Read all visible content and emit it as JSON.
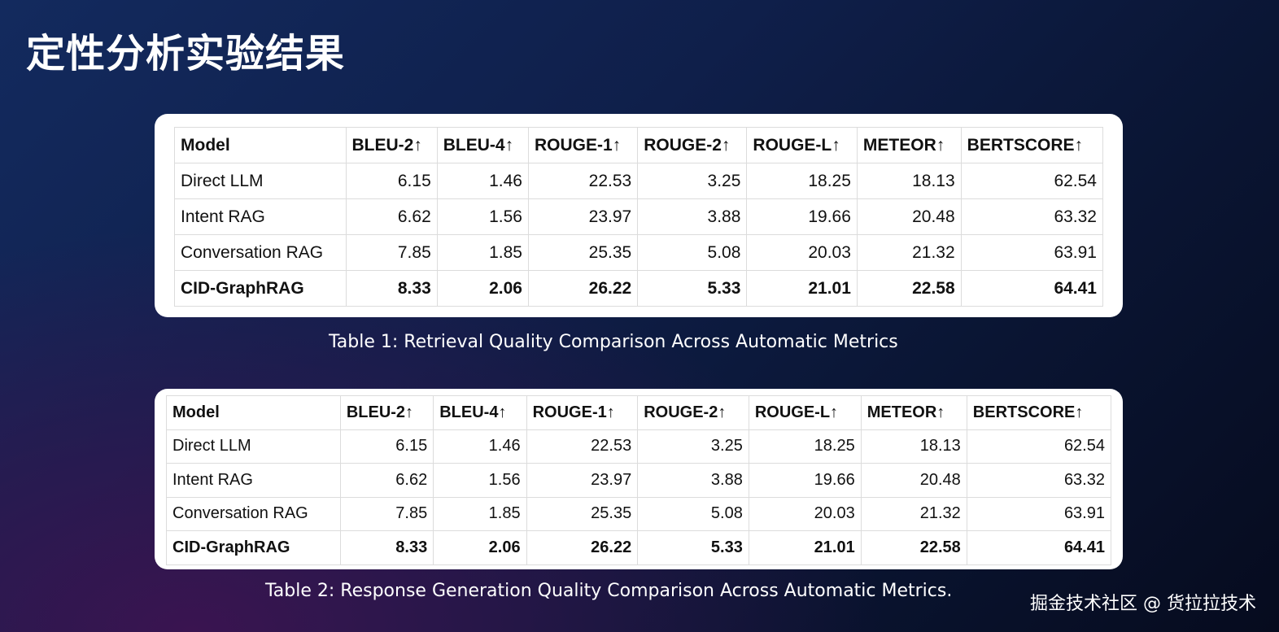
{
  "title": "定性分析实验结果",
  "columns": [
    "Model",
    "BLEU-2↑",
    "BLEU-4↑",
    "ROUGE-1↑",
    "ROUGE-2↑",
    "ROUGE-L↑",
    "METEOR↑",
    "BERTSCORE↑"
  ],
  "table1": {
    "caption": "Table 1: Retrieval Quality Comparison Across Automatic Metrics",
    "rows": [
      {
        "model": "Direct LLM",
        "values": [
          "6.15",
          "1.46",
          "22.53",
          "3.25",
          "18.25",
          "18.13",
          "62.54"
        ]
      },
      {
        "model": "Intent RAG",
        "values": [
          "6.62",
          "1.56",
          "23.97",
          "3.88",
          "19.66",
          "20.48",
          "63.32"
        ]
      },
      {
        "model": "Conversation RAG",
        "values": [
          "7.85",
          "1.85",
          "25.35",
          "5.08",
          "20.03",
          "21.32",
          "63.91"
        ]
      },
      {
        "model": "CID-GraphRAG",
        "values": [
          "8.33",
          "2.06",
          "26.22",
          "5.33",
          "21.01",
          "22.58",
          "64.41"
        ]
      }
    ]
  },
  "table2": {
    "caption": "Table 2: Response Generation Quality Comparison Across Automatic Metrics.",
    "rows": [
      {
        "model": "Direct LLM",
        "values": [
          "6.15",
          "1.46",
          "22.53",
          "3.25",
          "18.25",
          "18.13",
          "62.54"
        ]
      },
      {
        "model": "Intent RAG",
        "values": [
          "6.62",
          "1.56",
          "23.97",
          "3.88",
          "19.66",
          "20.48",
          "63.32"
        ]
      },
      {
        "model": "Conversation RAG",
        "values": [
          "7.85",
          "1.85",
          "25.35",
          "5.08",
          "20.03",
          "21.32",
          "63.91"
        ]
      },
      {
        "model": "CID-GraphRAG",
        "values": [
          "8.33",
          "2.06",
          "26.22",
          "5.33",
          "21.01",
          "22.58",
          "64.41"
        ]
      }
    ]
  },
  "footer": "掘金技术社区 @ 货拉拉技术"
}
